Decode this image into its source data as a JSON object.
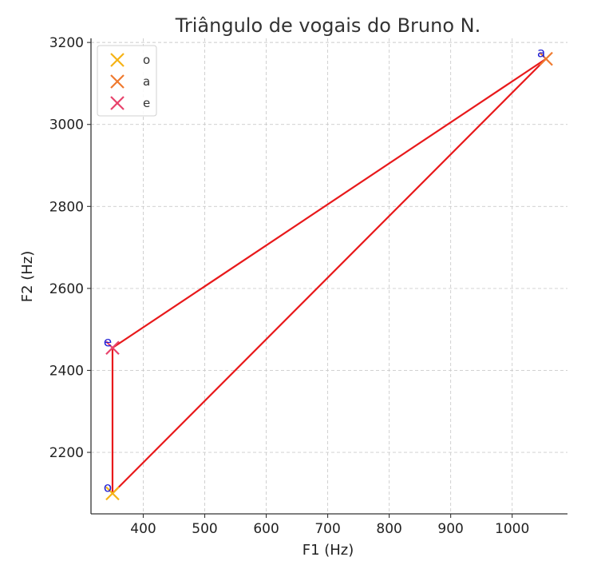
{
  "chart_data": {
    "type": "scatter",
    "title": "Triângulo de vogais do Bruno N.",
    "xlabel": "F1 (Hz)",
    "ylabel": "F2 (Hz)",
    "xlim": [
      315,
      1090
    ],
    "ylim": [
      2050,
      3210
    ],
    "x_ticks": [
      400,
      500,
      600,
      700,
      800,
      900,
      1000
    ],
    "y_ticks": [
      2200,
      2400,
      2600,
      2800,
      3000,
      3200
    ],
    "grid": true,
    "legend_position": "top-left",
    "series": [
      {
        "name": "o",
        "color": "#f5b316",
        "marker": "x",
        "x": 350,
        "y": 2100
      },
      {
        "name": "a",
        "color": "#ef7a2e",
        "marker": "x",
        "x": 1055,
        "y": 3160
      },
      {
        "name": "e",
        "color": "#e8436c",
        "marker": "x",
        "x": 350,
        "y": 2455
      }
    ],
    "point_labels": [
      {
        "text": "o",
        "x": 350,
        "y": 2100
      },
      {
        "text": "a",
        "x": 1055,
        "y": 3160
      },
      {
        "text": "e",
        "x": 350,
        "y": 2455
      }
    ],
    "triangle": {
      "color": "#e8191b",
      "path": [
        [
          350,
          2100
        ],
        [
          1055,
          3160
        ],
        [
          350,
          2455
        ],
        [
          350,
          2100
        ]
      ]
    }
  }
}
